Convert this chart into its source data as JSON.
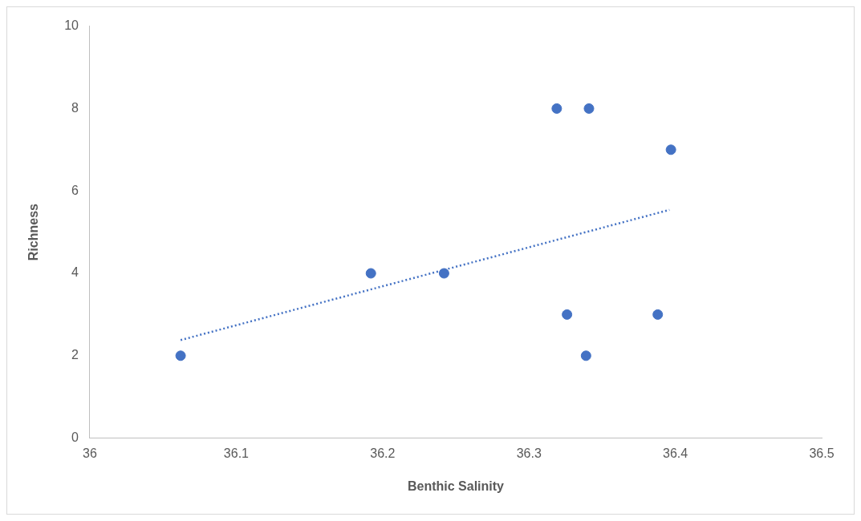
{
  "chart_data": {
    "type": "scatter",
    "xlabel": "Benthic Salinity",
    "ylabel": "Richness",
    "xlim": [
      36,
      36.5
    ],
    "xticks": [
      36,
      36.1,
      36.2,
      36.3,
      36.4,
      36.5
    ],
    "ylim": [
      0,
      10
    ],
    "yticks": [
      0,
      2,
      4,
      6,
      8,
      10
    ],
    "grid": false,
    "legend": false,
    "marker": "circle",
    "series": [
      {
        "type": "scatter",
        "color": "#4472c4",
        "x": [
          36.062,
          36.192,
          36.242,
          36.319,
          36.341,
          36.326,
          36.339,
          36.388,
          36.397
        ],
        "values": [
          2,
          4,
          4,
          8,
          8,
          3,
          2,
          3,
          7
        ]
      },
      {
        "type": "line",
        "color": "#4472c4",
        "line_style": "dotted",
        "marker": "none",
        "x": [
          36.062,
          36.396
        ],
        "values": [
          2.38,
          5.54
        ]
      }
    ]
  }
}
